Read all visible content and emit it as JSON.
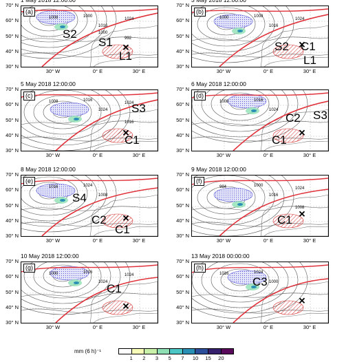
{
  "figure": {
    "panels": [
      {
        "label": "(a)",
        "date": "1 May 2018 12:00:00",
        "features": [
          {
            "text": "S2"
          },
          {
            "text": "S1"
          },
          {
            "text": "L1"
          }
        ],
        "isobar_labels": [
          "1008",
          "1000",
          "1016",
          "1024",
          "992",
          "1000"
        ]
      },
      {
        "label": "(b)",
        "date": "3 May 2018 12:00:00",
        "features": [
          {
            "text": "S2"
          },
          {
            "text": "C1"
          },
          {
            "text": "L1"
          }
        ],
        "isobar_labels": [
          "1000",
          "1008",
          "1016",
          "1024"
        ]
      },
      {
        "label": "(c)",
        "date": "5 May 2018 12:00:00",
        "features": [
          {
            "text": "S3"
          },
          {
            "text": "C1"
          }
        ],
        "isobar_labels": [
          "1008",
          "1016",
          "1024",
          "1024",
          "1016"
        ]
      },
      {
        "label": "(d)",
        "date": "6 May 2018 12:00:00",
        "features": [
          {
            "text": "C2"
          },
          {
            "text": "S3"
          },
          {
            "text": "C1"
          }
        ],
        "isobar_labels": [
          "1008",
          "1016",
          "1024"
        ]
      },
      {
        "label": "(e)",
        "date": "8 May 2018 12:00:00",
        "features": [
          {
            "text": "S4"
          },
          {
            "text": "C2"
          },
          {
            "text": "C1"
          }
        ],
        "isobar_labels": [
          "1016",
          "1024",
          "1008"
        ]
      },
      {
        "label": "(f)",
        "date": "9 May 2018 12:00:00",
        "features": [
          {
            "text": "C1"
          }
        ],
        "isobar_labels": [
          "984",
          "1000",
          "1016",
          "1024",
          "1008"
        ]
      },
      {
        "label": "(g)",
        "date": "10 May 2018 12:00:00",
        "features": [
          {
            "text": "C1"
          }
        ],
        "isobar_labels": [
          "1000",
          "1016",
          "1024",
          "1024"
        ]
      },
      {
        "label": "(h)",
        "date": "13 May 2018 00:00:00",
        "features": [
          {
            "text": "C3"
          }
        ],
        "isobar_labels": [
          "1016",
          "1024",
          "1000"
        ]
      }
    ],
    "lat_labels": [
      "70° N",
      "60° N",
      "50° N",
      "40° N",
      "30° N"
    ],
    "lon_labels": [
      "30° W",
      "0° E",
      "30° E"
    ],
    "colorbar": {
      "unit": "mm (6 h)⁻¹",
      "ticks": [
        "1",
        "2",
        "3",
        "5",
        "7",
        "10",
        "15",
        "20"
      ],
      "colors": [
        "#ffffff",
        "#f6fbb8",
        "#c9f0a8",
        "#8ee0b4",
        "#4cc6c4",
        "#2a8fb5",
        "#2c4e9a",
        "#36206e",
        "#5a0a5a"
      ]
    },
    "colors": {
      "front_red": "#e0313a",
      "isobar": "#555555",
      "hatch_blue": "#5b5bd6",
      "hatch_red": "#d43333"
    }
  }
}
